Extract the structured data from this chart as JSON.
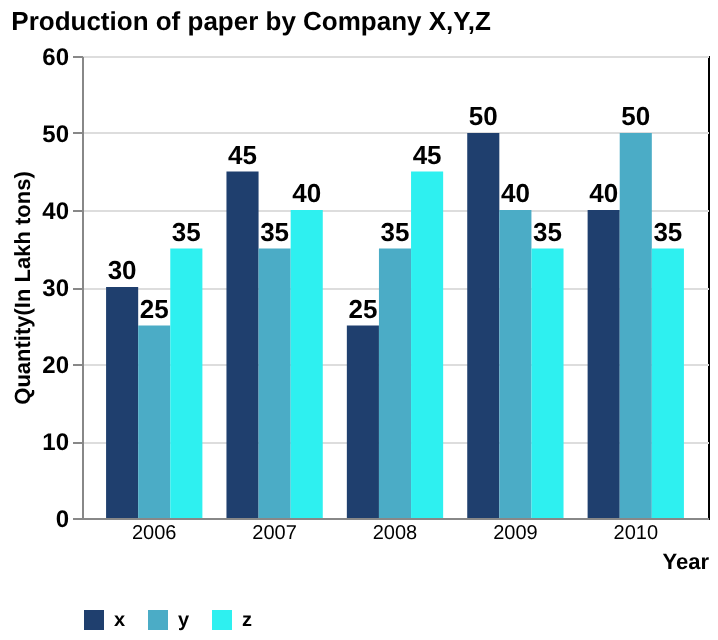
{
  "chart_data": {
    "type": "bar",
    "title": "Production of paper by Company X,Y,Z",
    "xlabel": "Year",
    "ylabel": "Quantity(In Lakh tons)",
    "categories": [
      "2006",
      "2007",
      "2008",
      "2009",
      "2010"
    ],
    "series": [
      {
        "name": "x",
        "color": "#1f3f6e",
        "values": [
          30,
          45,
          25,
          50,
          40
        ]
      },
      {
        "name": "y",
        "color": "#4bacc6",
        "values": [
          25,
          35,
          35,
          40,
          50
        ]
      },
      {
        "name": "z",
        "color": "#2ef0f0",
        "values": [
          35,
          40,
          45,
          35,
          35
        ]
      }
    ],
    "ylim": [
      0,
      60
    ],
    "yticks": [
      0,
      10,
      20,
      30,
      40,
      50,
      60
    ],
    "grid": "y",
    "legend": "bottom",
    "data_labels": true
  }
}
